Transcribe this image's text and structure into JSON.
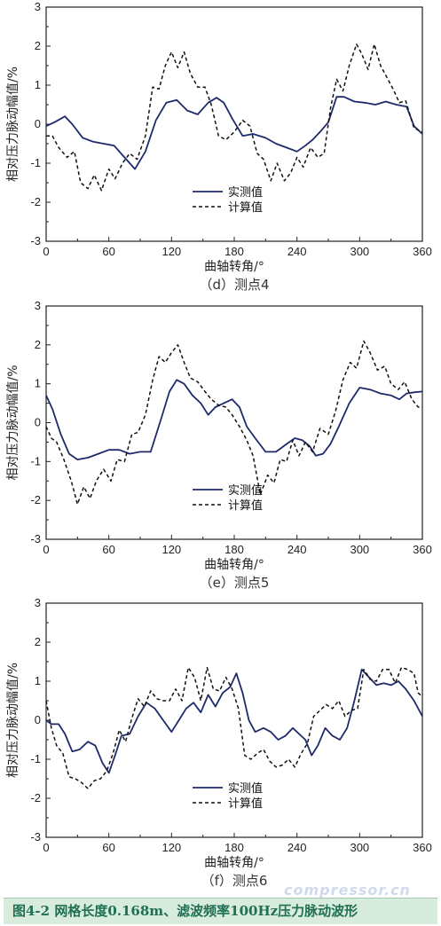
{
  "footer": {
    "caption": "图4-2 网格长度0.168m、滤波频率100Hz压力脉动波形"
  },
  "watermark": {
    "text": "compressor.cn"
  },
  "colors": {
    "measured": "#1f2a6b",
    "computed": "#111111",
    "footer_bg": "#d7ecdc",
    "footer_text": "#1f6f54"
  },
  "chart_data": [
    {
      "type": "line",
      "caption": "（d）测点4",
      "xlabel": "曲轴转角/°",
      "ylabel": "相对压力脉动幅值/%",
      "xlim": [
        0,
        360
      ],
      "ylim": [
        -3,
        3
      ],
      "xticks": [
        0,
        60,
        120,
        180,
        240,
        300,
        360
      ],
      "yticks": [
        -3,
        -2,
        -1,
        0,
        1,
        2,
        3
      ],
      "legend_position": "lower-center",
      "series": [
        {
          "name": "实测值",
          "style": "solid",
          "x": [
            0,
            8,
            18,
            25,
            35,
            45,
            55,
            65,
            75,
            85,
            95,
            105,
            115,
            125,
            135,
            145,
            155,
            163,
            170,
            178,
            188,
            198,
            210,
            220,
            230,
            240,
            248,
            255,
            262,
            270,
            278,
            285,
            295,
            305,
            315,
            325,
            335,
            345,
            352,
            360
          ],
          "y": [
            -0.05,
            0.05,
            0.2,
            0.0,
            -0.35,
            -0.45,
            -0.5,
            -0.55,
            -0.85,
            -1.15,
            -0.7,
            0.1,
            0.55,
            0.62,
            0.35,
            0.25,
            0.55,
            0.68,
            0.55,
            0.15,
            -0.3,
            -0.25,
            -0.35,
            -0.5,
            -0.6,
            -0.7,
            -0.55,
            -0.4,
            -0.2,
            0.05,
            0.7,
            0.7,
            0.58,
            0.55,
            0.5,
            0.58,
            0.5,
            0.45,
            -0.05,
            -0.25
          ]
        },
        {
          "name": "计算值",
          "style": "dashed",
          "x": [
            0,
            6,
            12,
            20,
            27,
            33,
            40,
            46,
            53,
            60,
            66,
            73,
            80,
            87,
            95,
            102,
            108,
            114,
            120,
            126,
            132,
            138,
            145,
            152,
            158,
            165,
            172,
            180,
            188,
            195,
            202,
            208,
            215,
            221,
            228,
            234,
            240,
            246,
            253,
            260,
            266,
            272,
            278,
            284,
            290,
            297,
            302,
            308,
            314,
            320,
            326,
            332,
            338,
            344,
            352,
            360
          ],
          "y": [
            -0.3,
            -0.3,
            -0.6,
            -0.85,
            -0.7,
            -1.5,
            -1.65,
            -1.3,
            -1.7,
            -1.15,
            -1.4,
            -1.0,
            -0.75,
            -0.9,
            -0.3,
            0.95,
            0.9,
            1.5,
            1.85,
            1.45,
            1.85,
            1.3,
            0.95,
            0.95,
            0.5,
            -0.3,
            -0.4,
            -0.2,
            0.1,
            -0.05,
            -0.75,
            -0.9,
            -1.45,
            -1.0,
            -1.45,
            -1.25,
            -0.85,
            -1.1,
            -0.6,
            -0.85,
            -0.75,
            0.4,
            1.15,
            0.85,
            1.5,
            2.05,
            1.8,
            1.4,
            2.05,
            1.5,
            1.2,
            0.9,
            0.55,
            0.6,
            -0.1,
            -0.2
          ]
        }
      ]
    },
    {
      "type": "line",
      "caption": "（e）测点5",
      "xlabel": "曲轴转角/°",
      "ylabel": "相对压力脉动幅值/%",
      "xlim": [
        0,
        360
      ],
      "ylim": [
        -3,
        3
      ],
      "xticks": [
        0,
        60,
        120,
        180,
        240,
        300,
        360
      ],
      "yticks": [
        -3,
        -2,
        -1,
        0,
        1,
        2,
        3
      ],
      "legend_position": "lower-center",
      "series": [
        {
          "name": "实测值",
          "style": "solid",
          "x": [
            0,
            6,
            14,
            22,
            30,
            40,
            50,
            60,
            70,
            80,
            90,
            100,
            110,
            118,
            125,
            132,
            140,
            148,
            155,
            162,
            170,
            178,
            185,
            192,
            200,
            210,
            220,
            230,
            238,
            245,
            252,
            258,
            265,
            272,
            280,
            290,
            300,
            310,
            320,
            330,
            338,
            345,
            352,
            360
          ],
          "y": [
            0.7,
            0.35,
            -0.3,
            -0.8,
            -0.95,
            -0.9,
            -0.8,
            -0.7,
            -0.7,
            -0.8,
            -0.75,
            -0.75,
            0.1,
            0.8,
            1.1,
            1.0,
            0.7,
            0.5,
            0.2,
            0.4,
            0.5,
            0.6,
            0.4,
            -0.1,
            -0.4,
            -0.75,
            -0.75,
            -0.55,
            -0.4,
            -0.45,
            -0.6,
            -0.85,
            -0.8,
            -0.55,
            -0.1,
            0.5,
            0.9,
            0.85,
            0.75,
            0.7,
            0.6,
            0.75,
            0.78,
            0.8
          ]
        },
        {
          "name": "计算值",
          "style": "dashed",
          "x": [
            0,
            5,
            10,
            17,
            24,
            30,
            36,
            42,
            48,
            55,
            62,
            68,
            75,
            82,
            88,
            95,
            102,
            108,
            114,
            120,
            126,
            132,
            138,
            145,
            152,
            158,
            165,
            172,
            178,
            185,
            192,
            198,
            205,
            212,
            218,
            224,
            230,
            236,
            242,
            248,
            255,
            262,
            270,
            277,
            284,
            291,
            297,
            304,
            310,
            317,
            324,
            330,
            337,
            343,
            350,
            356,
            360
          ],
          "y": [
            -0.1,
            -0.4,
            -0.5,
            -0.95,
            -1.5,
            -2.1,
            -1.65,
            -1.95,
            -1.5,
            -1.2,
            -1.5,
            -0.95,
            -1.0,
            -0.3,
            -0.25,
            0.2,
            1.1,
            1.7,
            1.55,
            1.8,
            2.0,
            1.55,
            1.15,
            1.05,
            0.8,
            0.6,
            0.45,
            0.4,
            0.2,
            -0.1,
            -0.45,
            -0.85,
            -1.85,
            -1.35,
            -1.55,
            -0.95,
            -1.0,
            -0.45,
            -0.85,
            -0.5,
            -0.75,
            -0.15,
            -0.3,
            0.3,
            1.1,
            1.55,
            1.4,
            2.1,
            1.8,
            1.35,
            1.45,
            1.0,
            0.85,
            1.05,
            0.6,
            0.4,
            0.4
          ]
        }
      ]
    },
    {
      "type": "line",
      "caption": "（f）测点6",
      "xlabel": "曲轴转角/°",
      "ylabel": "相对压力脉动幅值/%",
      "xlim": [
        0,
        360
      ],
      "ylim": [
        -3,
        3
      ],
      "xticks": [
        0,
        60,
        120,
        180,
        240,
        300,
        360
      ],
      "yticks": [
        -3,
        -2,
        -1,
        0,
        1,
        2,
        3
      ],
      "legend_position": "lower-center",
      "series": [
        {
          "name": "实测值",
          "style": "solid",
          "x": [
            0,
            5,
            12,
            18,
            25,
            32,
            40,
            47,
            54,
            60,
            66,
            72,
            80,
            88,
            96,
            104,
            112,
            120,
            127,
            134,
            141,
            148,
            155,
            162,
            169,
            176,
            182,
            188,
            194,
            200,
            208,
            215,
            222,
            229,
            236,
            242,
            248,
            254,
            260,
            267,
            274,
            281,
            288,
            295,
            302,
            309,
            316,
            323,
            330,
            337,
            344,
            352,
            360
          ],
          "y": [
            0.0,
            -0.1,
            -0.1,
            -0.35,
            -0.8,
            -0.75,
            -0.55,
            -0.65,
            -1.1,
            -1.35,
            -0.9,
            -0.4,
            -0.35,
            0.1,
            0.45,
            0.3,
            0.0,
            -0.3,
            0.0,
            0.3,
            0.45,
            0.2,
            0.65,
            0.35,
            0.7,
            0.85,
            1.2,
            0.7,
            0.0,
            -0.3,
            -0.2,
            -0.3,
            -0.5,
            -0.4,
            -0.2,
            -0.35,
            -0.5,
            -0.9,
            -0.65,
            -0.2,
            -0.4,
            -0.5,
            -0.2,
            0.5,
            1.3,
            1.1,
            0.9,
            0.95,
            0.9,
            1.0,
            0.8,
            0.5,
            0.1
          ]
        },
        {
          "name": "计算值",
          "style": "dashed",
          "x": [
            0,
            5,
            10,
            16,
            22,
            28,
            34,
            40,
            46,
            52,
            58,
            64,
            70,
            76,
            82,
            88,
            94,
            100,
            106,
            112,
            118,
            124,
            130,
            136,
            142,
            148,
            154,
            160,
            166,
            172,
            178,
            184,
            190,
            196,
            202,
            208,
            214,
            220,
            226,
            232,
            238,
            244,
            250,
            256,
            262,
            268,
            274,
            280,
            286,
            292,
            298,
            304,
            310,
            316,
            322,
            328,
            334,
            340,
            346,
            352,
            356,
            360
          ],
          "y": [
            0.5,
            -0.2,
            -0.65,
            -0.85,
            -1.45,
            -1.5,
            -1.6,
            -1.75,
            -1.55,
            -1.5,
            -1.3,
            -0.85,
            -0.25,
            -0.55,
            0.05,
            0.55,
            0.35,
            0.75,
            0.55,
            0.5,
            0.5,
            0.8,
            0.5,
            1.35,
            1.1,
            0.5,
            1.35,
            0.8,
            0.75,
            1.1,
            0.8,
            0.3,
            -0.9,
            -1.0,
            -0.85,
            -0.75,
            -1.05,
            -1.2,
            -1.15,
            -1.0,
            -1.2,
            -0.85,
            -0.6,
            0.1,
            0.25,
            0.4,
            0.3,
            0.5,
            0.1,
            0.25,
            0.3,
            1.3,
            1.05,
            1.0,
            1.3,
            1.3,
            0.95,
            1.35,
            1.3,
            1.2,
            0.7,
            0.6
          ]
        }
      ]
    }
  ]
}
